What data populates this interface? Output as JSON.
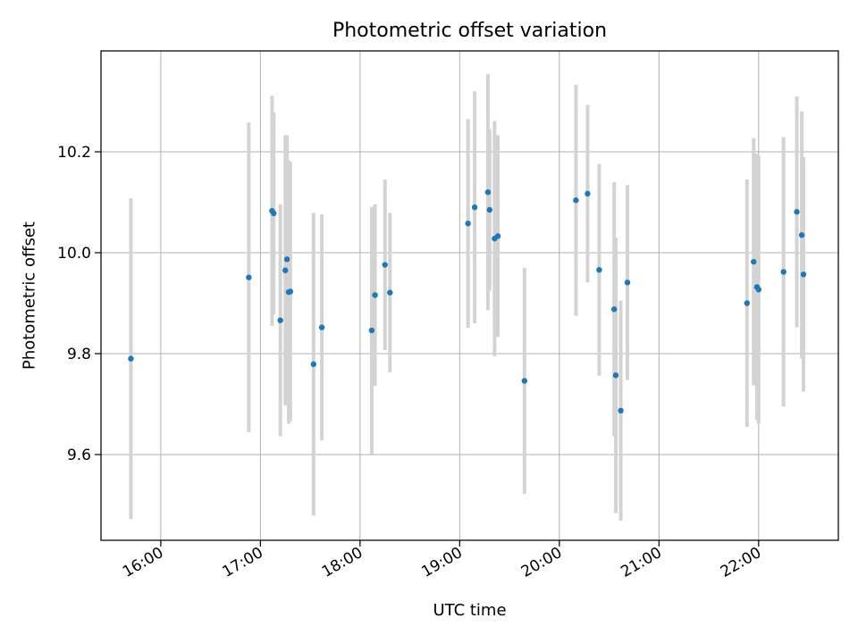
{
  "chart_data": {
    "type": "scatter",
    "title": "Photometric offset variation",
    "xlabel": "UTC time",
    "ylabel": "Photometric offset",
    "x_axis": "time",
    "x_ticks": [
      "16:00",
      "17:00",
      "18:00",
      "19:00",
      "20:00",
      "21:00",
      "22:00"
    ],
    "xlim": [
      "15:24",
      "22:48"
    ],
    "y_ticks": [
      9.6,
      9.8,
      10.0,
      10.2
    ],
    "ylim": [
      9.43,
      10.4
    ],
    "grid": true,
    "point_color": "#1f77b4",
    "errorbar_color": "#d3d3d3",
    "series": [
      {
        "points": [
          {
            "x": "15:42",
            "y": 9.79,
            "err": 0.318
          },
          {
            "x": "16:53",
            "y": 9.951,
            "err": 0.307
          },
          {
            "x": "17:07",
            "y": 10.083,
            "err": 0.228
          },
          {
            "x": "17:08",
            "y": 10.078,
            "err": 0.2
          },
          {
            "x": "17:12",
            "y": 9.866,
            "err": 0.23
          },
          {
            "x": "17:15",
            "y": 9.965,
            "err": 0.268
          },
          {
            "x": "17:16",
            "y": 9.987,
            "err": 0.246
          },
          {
            "x": "17:17",
            "y": 9.922,
            "err": 0.261
          },
          {
            "x": "17:18",
            "y": 9.923,
            "err": 0.257
          },
          {
            "x": "17:32",
            "y": 9.779,
            "err": 0.3
          },
          {
            "x": "17:37",
            "y": 9.852,
            "err": 0.224
          },
          {
            "x": "18:07",
            "y": 9.846,
            "err": 0.245
          },
          {
            "x": "18:09",
            "y": 9.916,
            "err": 0.18
          },
          {
            "x": "18:15",
            "y": 9.976,
            "err": 0.169
          },
          {
            "x": "18:18",
            "y": 9.921,
            "err": 0.158
          },
          {
            "x": "19:05",
            "y": 10.058,
            "err": 0.207
          },
          {
            "x": "19:09",
            "y": 10.09,
            "err": 0.23
          },
          {
            "x": "19:17",
            "y": 10.12,
            "err": 0.234
          },
          {
            "x": "19:18",
            "y": 10.085,
            "err": 0.16
          },
          {
            "x": "19:21",
            "y": 10.028,
            "err": 0.233
          },
          {
            "x": "19:23",
            "y": 10.033,
            "err": 0.2
          },
          {
            "x": "19:39",
            "y": 9.746,
            "err": 0.224
          },
          {
            "x": "20:10",
            "y": 10.104,
            "err": 0.229
          },
          {
            "x": "20:17",
            "y": 10.117,
            "err": 0.176
          },
          {
            "x": "20:24",
            "y": 9.966,
            "err": 0.21
          },
          {
            "x": "20:33",
            "y": 9.888,
            "err": 0.252
          },
          {
            "x": "20:34",
            "y": 9.757,
            "err": 0.273
          },
          {
            "x": "20:37",
            "y": 9.687,
            "err": 0.218
          },
          {
            "x": "20:41",
            "y": 9.941,
            "err": 0.193
          },
          {
            "x": "21:53",
            "y": 9.9,
            "err": 0.245
          },
          {
            "x": "21:57",
            "y": 9.982,
            "err": 0.245
          },
          {
            "x": "21:59",
            "y": 9.932,
            "err": 0.264
          },
          {
            "x": "22:00",
            "y": 9.927,
            "err": 0.265
          },
          {
            "x": "22:15",
            "y": 9.962,
            "err": 0.267
          },
          {
            "x": "22:23",
            "y": 10.081,
            "err": 0.229
          },
          {
            "x": "22:26",
            "y": 10.035,
            "err": 0.245
          },
          {
            "x": "22:27",
            "y": 9.957,
            "err": 0.232
          }
        ]
      }
    ]
  }
}
